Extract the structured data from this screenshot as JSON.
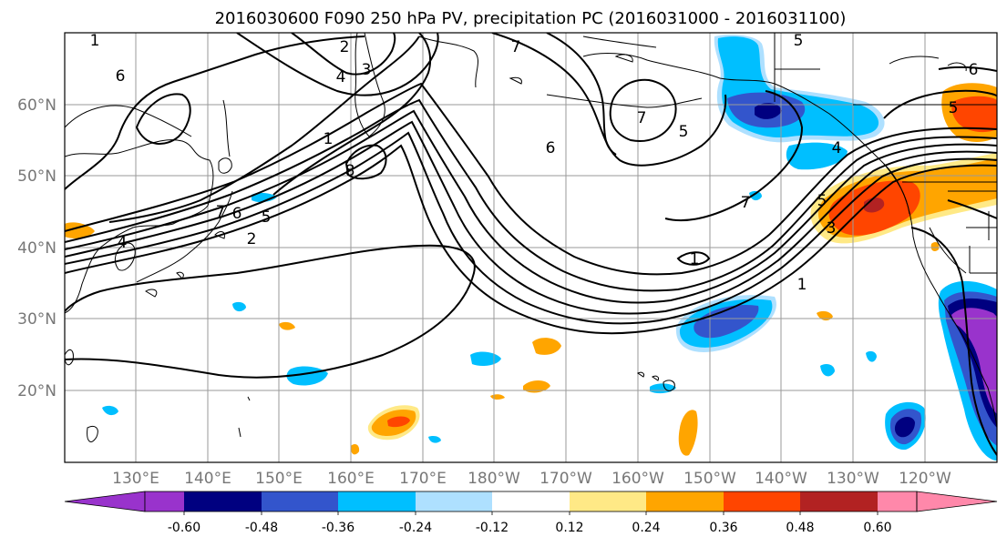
{
  "title": "2016030600 F090 250 hPa PV, precipitation PC (2016031000 - 2016031100)",
  "lat_labels": [
    "20°N",
    "30°N",
    "40°N",
    "50°N",
    "60°N"
  ],
  "lon_labels": [
    "130°E",
    "140°E",
    "150°E",
    "160°E",
    "170°E",
    "180°W",
    "170°W",
    "160°W",
    "150°W",
    "140°W",
    "130°W",
    "120°W"
  ],
  "contour_labels": [
    "1",
    "6",
    "2",
    "3",
    "4",
    "7",
    "8",
    "6",
    "2",
    "1",
    "4",
    "5",
    "7",
    "5",
    "6",
    "7",
    "1",
    "6",
    "7",
    "5",
    "5",
    "5",
    "3",
    "4",
    "1"
  ],
  "colorbar": {
    "colors": [
      "#9933cc",
      "#000080",
      "#3355cc",
      "#00bfff",
      "#aee0ff",
      "#ffffff",
      "#ffe986",
      "#ffa500",
      "#ff4500",
      "#b22222",
      "#ff88aa"
    ],
    "tick_labels": [
      "-0.60",
      "-0.48",
      "-0.36",
      "-0.24",
      "-0.12",
      "0.12",
      "0.24",
      "0.36",
      "0.48",
      "0.60"
    ],
    "extend": "both"
  },
  "colors": {
    "grid": "#9a9a9a",
    "coast": "#000000",
    "contour": "#000000"
  }
}
